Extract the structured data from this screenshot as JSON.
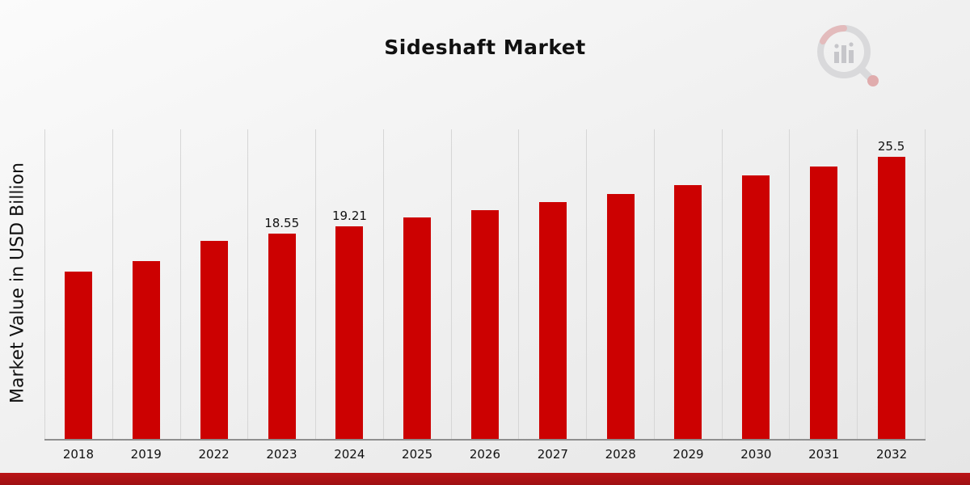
{
  "title": "Sideshaft Market",
  "ylabel": "Market Value in USD Billion",
  "logo_name": "market-research-magnifier-chart-logo",
  "footer": {
    "ribbon_color": "#9e1013"
  },
  "chart_data": {
    "type": "bar",
    "title": "Sideshaft Market",
    "xlabel": "",
    "ylabel": "Market Value in USD Billion",
    "categories": [
      "2018",
      "2019",
      "2022",
      "2023",
      "2024",
      "2025",
      "2026",
      "2027",
      "2028",
      "2029",
      "2030",
      "2031",
      "2032"
    ],
    "values": [
      15.1,
      16.1,
      17.9,
      18.55,
      19.21,
      20.0,
      20.7,
      21.4,
      22.15,
      22.95,
      23.85,
      24.65,
      25.5
    ],
    "data_labels": {
      "2023": "18.55",
      "2024": "19.21",
      "2032": "25.5"
    },
    "bar_color": "#cc0101",
    "ylim": [
      0,
      28
    ],
    "grid": "vertical-only",
    "legend": "none"
  }
}
